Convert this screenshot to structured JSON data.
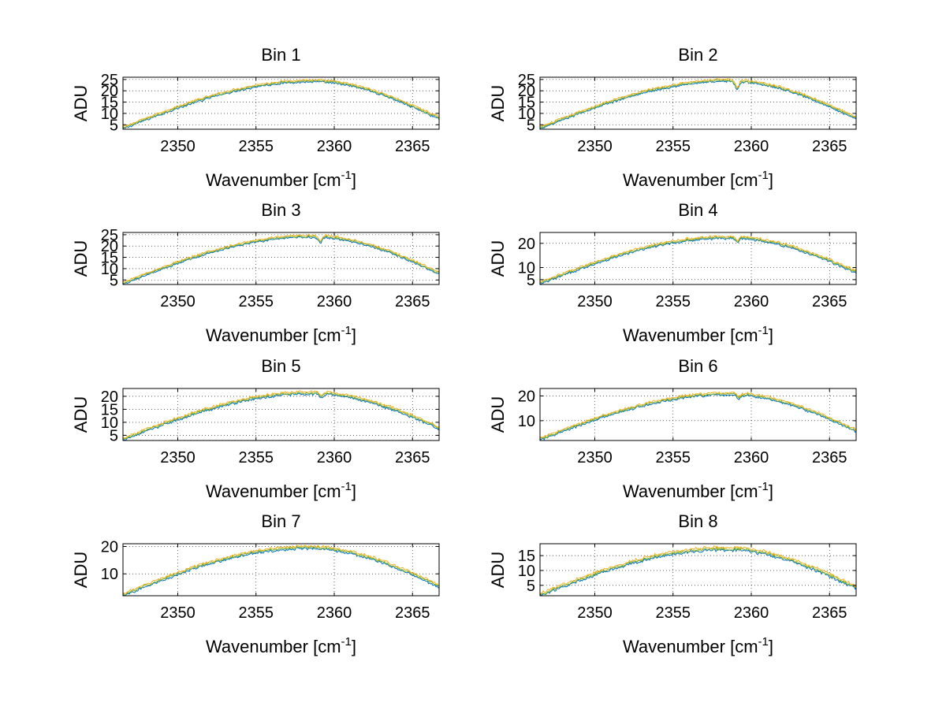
{
  "chart_data": [
    {
      "type": "line",
      "title": "Bin 1",
      "xlabel": "Wavenumber [cm",
      "xlabel_superscript": "-1",
      "xlabel_suffix": "]",
      "ylabel": "ADU",
      "xlim": [
        2346.5,
        2366.7
      ],
      "ylim": [
        3,
        26
      ],
      "xticks": [
        2350,
        2355,
        2360,
        2365
      ],
      "yticks": [
        5,
        10,
        15,
        20,
        25
      ],
      "grid": true,
      "profile": {
        "start": 3.5,
        "peak": 24.3,
        "end": 7.8,
        "center": 2358.6
      },
      "dips": [],
      "series": [
        {
          "name": "series-1",
          "color": "#0072bd",
          "offset": -0.4
        },
        {
          "name": "series-2",
          "color": "#77ac30",
          "offset": 0.0
        },
        {
          "name": "series-3",
          "color": "#edb120",
          "offset": 0.5
        }
      ]
    },
    {
      "type": "line",
      "title": "Bin 2",
      "xlabel": "Wavenumber [cm",
      "xlabel_superscript": "-1",
      "xlabel_suffix": "]",
      "ylabel": "ADU",
      "xlim": [
        2346.5,
        2366.7
      ],
      "ylim": [
        3,
        26
      ],
      "xticks": [
        2350,
        2355,
        2360,
        2365
      ],
      "yticks": [
        5,
        10,
        15,
        20,
        25
      ],
      "grid": true,
      "profile": {
        "start": 3.5,
        "peak": 24.5,
        "end": 7.8,
        "center": 2358.6
      },
      "dips": [
        {
          "x": 2359.1,
          "depth": 3.5
        }
      ],
      "series": [
        {
          "name": "series-1",
          "color": "#0072bd",
          "offset": -0.4
        },
        {
          "name": "series-2",
          "color": "#77ac30",
          "offset": 0.0
        },
        {
          "name": "series-3",
          "color": "#edb120",
          "offset": 0.5
        }
      ]
    },
    {
      "type": "line",
      "title": "Bin 3",
      "xlabel": "Wavenumber [cm",
      "xlabel_superscript": "-1",
      "xlabel_suffix": "]",
      "ylabel": "ADU",
      "xlim": [
        2346.5,
        2366.7
      ],
      "ylim": [
        3,
        26
      ],
      "xticks": [
        2350,
        2355,
        2360,
        2365
      ],
      "yticks": [
        5,
        10,
        15,
        20,
        25
      ],
      "grid": true,
      "profile": {
        "start": 3.5,
        "peak": 24.3,
        "end": 8.0,
        "center": 2358.6
      },
      "dips": [
        {
          "x": 2359.1,
          "depth": 2.5
        }
      ],
      "series": [
        {
          "name": "series-1",
          "color": "#0072bd",
          "offset": -0.4
        },
        {
          "name": "series-2",
          "color": "#77ac30",
          "offset": 0.0
        },
        {
          "name": "series-3",
          "color": "#edb120",
          "offset": 0.5
        }
      ]
    },
    {
      "type": "line",
      "title": "Bin 4",
      "xlabel": "Wavenumber [cm",
      "xlabel_superscript": "-1",
      "xlabel_suffix": "]",
      "ylabel": "ADU",
      "xlim": [
        2346.5,
        2366.7
      ],
      "ylim": [
        3,
        24.5
      ],
      "xticks": [
        2350,
        2355,
        2360,
        2365
      ],
      "yticks": [
        5,
        10,
        20
      ],
      "grid": true,
      "profile": {
        "start": 3.5,
        "peak": 22.5,
        "end": 8.2,
        "center": 2358.6
      },
      "dips": [
        {
          "x": 2359.1,
          "depth": 1.5
        }
      ],
      "series": [
        {
          "name": "series-1",
          "color": "#0072bd",
          "offset": -0.4
        },
        {
          "name": "series-2",
          "color": "#77ac30",
          "offset": 0.0
        },
        {
          "name": "series-3",
          "color": "#edb120",
          "offset": 0.5
        }
      ]
    },
    {
      "type": "line",
      "title": "Bin 5",
      "xlabel": "Wavenumber [cm",
      "xlabel_superscript": "-1",
      "xlabel_suffix": "]",
      "ylabel": "ADU",
      "xlim": [
        2346.5,
        2366.7
      ],
      "ylim": [
        3,
        23
      ],
      "xticks": [
        2350,
        2355,
        2360,
        2365
      ],
      "yticks": [
        5,
        10,
        15,
        20
      ],
      "grid": true,
      "profile": {
        "start": 3.5,
        "peak": 21.3,
        "end": 7.8,
        "center": 2358.6
      },
      "dips": [
        {
          "x": 2359.2,
          "depth": 1.5
        }
      ],
      "series": [
        {
          "name": "series-1",
          "color": "#0072bd",
          "offset": -0.4
        },
        {
          "name": "series-2",
          "color": "#77ac30",
          "offset": 0.0
        },
        {
          "name": "series-3",
          "color": "#edb120",
          "offset": 0.5
        }
      ]
    },
    {
      "type": "line",
      "title": "Bin 6",
      "xlabel": "Wavenumber [cm",
      "xlabel_superscript": "-1",
      "xlabel_suffix": "]",
      "ylabel": "ADU",
      "xlim": [
        2346.5,
        2366.7
      ],
      "ylim": [
        2,
        23
      ],
      "xticks": [
        2350,
        2355,
        2360,
        2365
      ],
      "yticks": [
        10,
        20
      ],
      "grid": true,
      "profile": {
        "start": 2.5,
        "peak": 20.8,
        "end": 6.0,
        "center": 2358.6
      },
      "dips": [
        {
          "x": 2359.2,
          "depth": 1.5
        }
      ],
      "series": [
        {
          "name": "series-1",
          "color": "#0072bd",
          "offset": -0.4
        },
        {
          "name": "series-2",
          "color": "#77ac30",
          "offset": 0.0
        },
        {
          "name": "series-3",
          "color": "#edb120",
          "offset": 0.5
        }
      ]
    },
    {
      "type": "line",
      "title": "Bin 7",
      "xlabel": "Wavenumber [cm",
      "xlabel_superscript": "-1",
      "xlabel_suffix": "]",
      "ylabel": "ADU",
      "xlim": [
        2346.5,
        2366.7
      ],
      "ylim": [
        2,
        21
      ],
      "xticks": [
        2350,
        2355,
        2360,
        2365
      ],
      "yticks": [
        10,
        20
      ],
      "grid": true,
      "profile": {
        "start": 2.3,
        "peak": 19.6,
        "end": 5.5,
        "center": 2358.3
      },
      "dips": [],
      "series": [
        {
          "name": "series-1",
          "color": "#0072bd",
          "offset": -0.4
        },
        {
          "name": "series-2",
          "color": "#77ac30",
          "offset": 0.0
        },
        {
          "name": "series-3",
          "color": "#edb120",
          "offset": 0.5
        }
      ]
    },
    {
      "type": "line",
      "title": "Bin 8",
      "xlabel": "Wavenumber [cm",
      "xlabel_superscript": "-1",
      "xlabel_suffix": "]",
      "ylabel": "ADU",
      "xlim": [
        2346.5,
        2366.7
      ],
      "ylim": [
        1.5,
        19
      ],
      "xticks": [
        2350,
        2355,
        2360,
        2365
      ],
      "yticks": [
        5,
        10,
        15
      ],
      "grid": true,
      "profile": {
        "start": 1.8,
        "peak": 17.3,
        "end": 4.3,
        "center": 2358.3
      },
      "dips": [],
      "series": [
        {
          "name": "series-1",
          "color": "#0072bd",
          "offset": -0.4
        },
        {
          "name": "series-2",
          "color": "#77ac30",
          "offset": 0.0
        },
        {
          "name": "series-3",
          "color": "#edb120",
          "offset": 0.5
        }
      ]
    }
  ]
}
